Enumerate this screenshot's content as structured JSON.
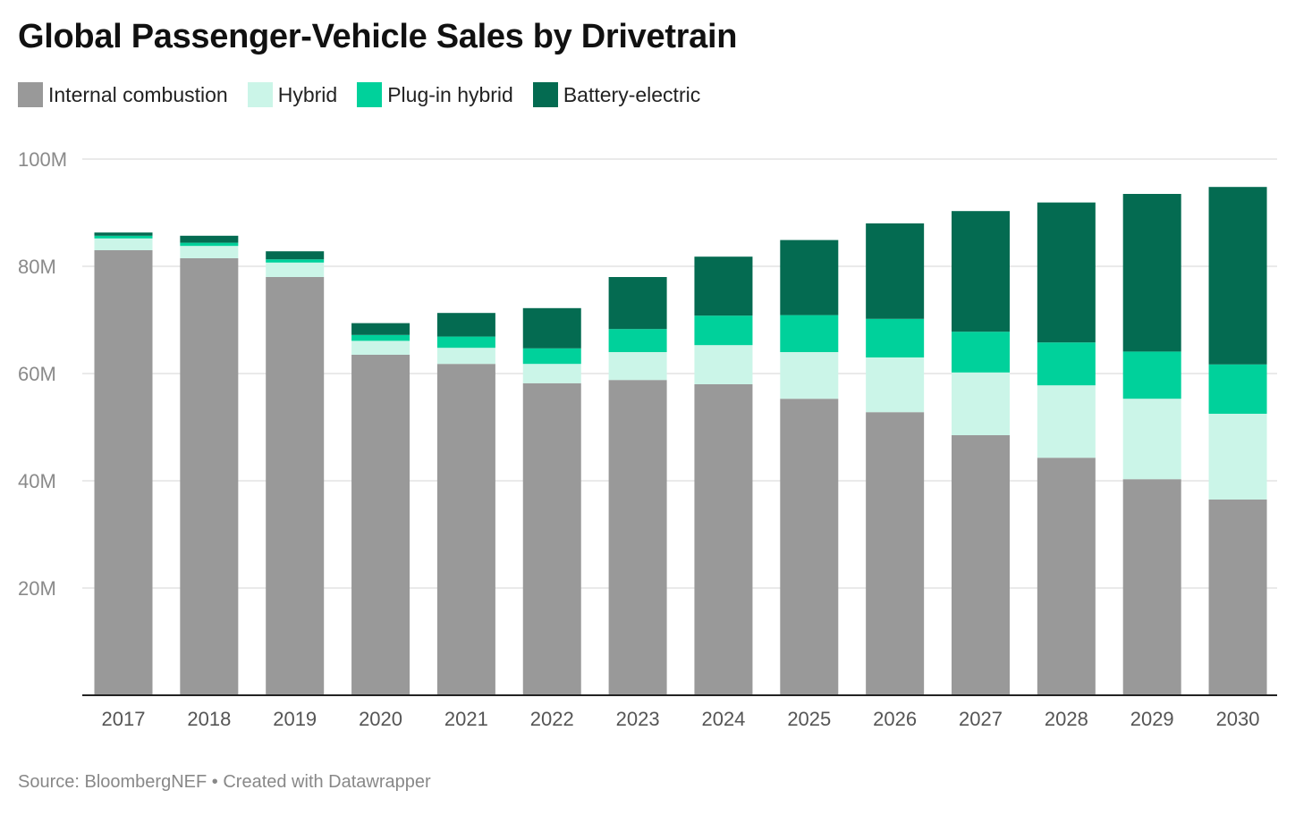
{
  "title": "Global Passenger-Vehicle Sales by Drivetrain",
  "footer": {
    "source": "Source: BloombergNEF",
    "separator": "•",
    "credit": "Created with Datawrapper"
  },
  "colors": {
    "ice": "#999999",
    "hybrid": "#cbf5e8",
    "phev": "#00d19b",
    "bev": "#046b51",
    "grid": "#e3e3e3",
    "baseline": "#222222"
  },
  "chart_data": {
    "type": "bar",
    "stacked": true,
    "title": "Global Passenger-Vehicle Sales by Drivetrain",
    "xlabel": "",
    "ylabel": "",
    "ylim": [
      0,
      100
    ],
    "y_unit_suffix": "M",
    "yticks": [
      20,
      40,
      60,
      80,
      100
    ],
    "ytick_labels": [
      "20M",
      "40M",
      "60M",
      "80M",
      "100M"
    ],
    "grid": true,
    "legend_position": "top-left",
    "categories": [
      "2017",
      "2018",
      "2019",
      "2020",
      "2021",
      "2022",
      "2023",
      "2024",
      "2025",
      "2026",
      "2027",
      "2028",
      "2029",
      "2030"
    ],
    "series": [
      {
        "name": "Internal combustion",
        "key": "ice",
        "values": [
          83.0,
          81.5,
          78.0,
          63.5,
          61.8,
          58.2,
          58.8,
          58.0,
          55.3,
          52.8,
          48.5,
          44.3,
          40.3,
          36.5
        ]
      },
      {
        "name": "Hybrid",
        "key": "hybrid",
        "values": [
          2.2,
          2.3,
          2.7,
          2.6,
          3.0,
          3.6,
          5.2,
          7.3,
          8.7,
          10.2,
          11.7,
          13.5,
          15.0,
          16.0
        ]
      },
      {
        "name": "Plug-in hybrid",
        "key": "phev",
        "values": [
          0.5,
          0.6,
          0.6,
          1.1,
          2.1,
          2.9,
          4.3,
          5.5,
          6.9,
          7.2,
          7.6,
          8.0,
          8.8,
          9.2
        ]
      },
      {
        "name": "Battery-electric",
        "key": "bev",
        "values": [
          0.6,
          1.3,
          1.5,
          2.2,
          4.4,
          7.5,
          9.7,
          11.0,
          14.0,
          17.8,
          22.5,
          26.1,
          29.4,
          33.1
        ]
      }
    ]
  }
}
